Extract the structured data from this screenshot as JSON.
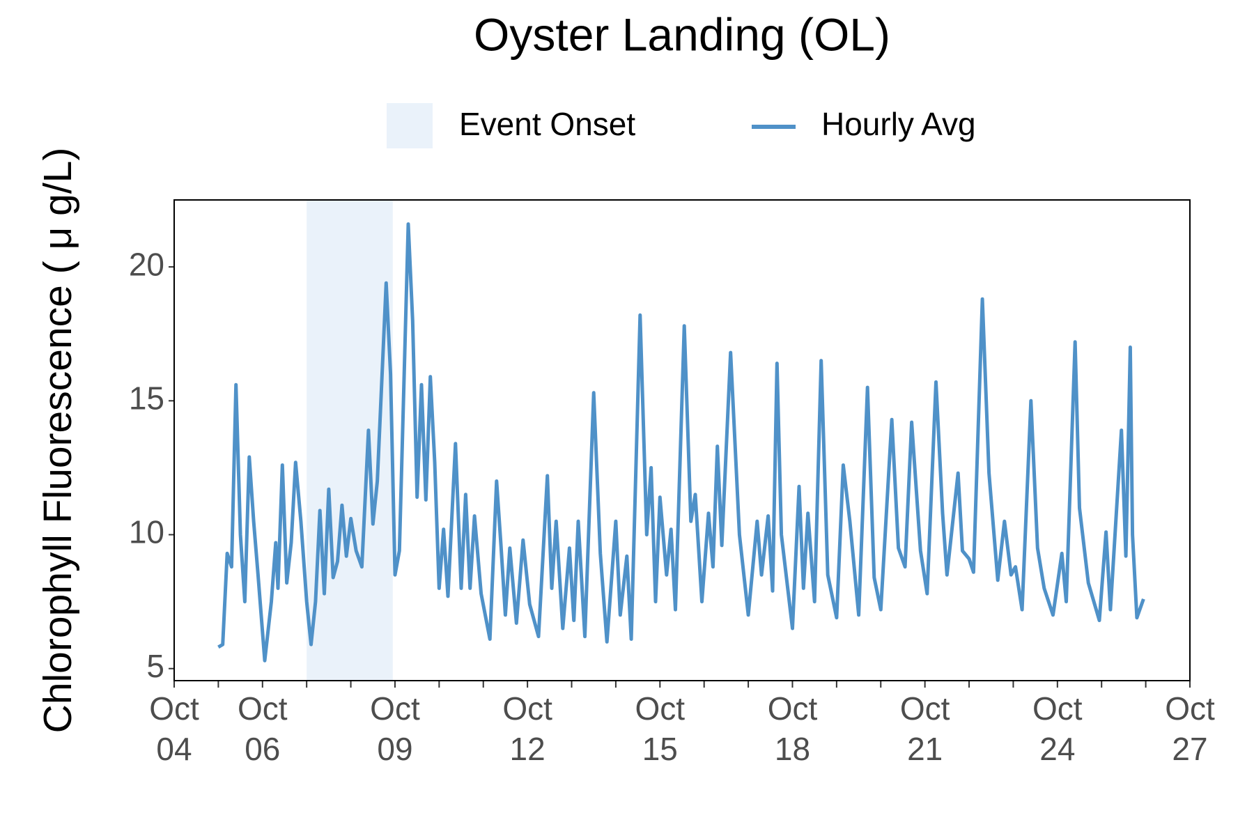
{
  "chart_data": {
    "type": "line",
    "title": "Oyster Landing (OL)",
    "ylabel": "Chlorophyll Fluorescence ( μ g/L)",
    "shaded_region": {
      "name": "Event Onset",
      "color": "#eaf2fa",
      "start": 7.0,
      "end": 8.95
    },
    "legend": "top",
    "xlim": [
      4,
      27
    ],
    "ylim": [
      4.55,
      22.5
    ],
    "xticks": [
      {
        "value": 4,
        "label": [
          "Oct",
          "04"
        ]
      },
      {
        "value": 6,
        "label": [
          "Oct",
          "06"
        ]
      },
      {
        "value": 9,
        "label": [
          "Oct",
          "09"
        ]
      },
      {
        "value": 12,
        "label": [
          "Oct",
          "12"
        ]
      },
      {
        "value": 15,
        "label": [
          "Oct",
          "15"
        ]
      },
      {
        "value": 18,
        "label": [
          "Oct",
          "18"
        ]
      },
      {
        "value": 21,
        "label": [
          "Oct",
          "21"
        ]
      },
      {
        "value": 24,
        "label": [
          "Oct",
          "24"
        ]
      },
      {
        "value": 27,
        "label": [
          "Oct",
          "27"
        ]
      }
    ],
    "xminorticks": [
      5,
      7,
      8,
      10,
      11,
      13,
      14,
      16,
      17,
      19,
      20,
      22,
      23,
      25,
      26
    ],
    "yticks": [
      5,
      10,
      15,
      20
    ],
    "series": [
      {
        "name": "Hourly Avg",
        "color": "#4f91c8",
        "x": [
          5.0,
          5.1,
          5.2,
          5.3,
          5.4,
          5.5,
          5.6,
          5.7,
          5.8,
          5.9,
          6.05,
          6.2,
          6.3,
          6.35,
          6.45,
          6.55,
          6.65,
          6.75,
          6.87,
          7.0,
          7.1,
          7.2,
          7.3,
          7.4,
          7.5,
          7.6,
          7.7,
          7.8,
          7.9,
          8.0,
          8.12,
          8.25,
          8.4,
          8.5,
          8.6,
          8.8,
          8.9,
          9.0,
          9.1,
          9.3,
          9.4,
          9.5,
          9.6,
          9.7,
          9.8,
          9.9,
          10.0,
          10.1,
          10.2,
          10.37,
          10.5,
          10.6,
          10.7,
          10.8,
          10.95,
          11.15,
          11.3,
          11.4,
          11.5,
          11.6,
          11.75,
          11.9,
          12.05,
          12.25,
          12.45,
          12.55,
          12.65,
          12.8,
          12.95,
          13.05,
          13.15,
          13.3,
          13.5,
          13.65,
          13.8,
          14.0,
          14.1,
          14.25,
          14.35,
          14.55,
          14.7,
          14.8,
          14.9,
          15.0,
          15.15,
          15.25,
          15.35,
          15.55,
          15.7,
          15.8,
          15.95,
          16.1,
          16.2,
          16.3,
          16.4,
          16.6,
          16.8,
          17.0,
          17.2,
          17.3,
          17.45,
          17.55,
          17.65,
          17.75,
          18.0,
          18.15,
          18.25,
          18.35,
          18.5,
          18.65,
          18.8,
          19.0,
          19.15,
          19.3,
          19.5,
          19.7,
          19.85,
          20.0,
          20.25,
          20.4,
          20.55,
          20.7,
          20.9,
          21.05,
          21.25,
          21.4,
          21.5,
          21.75,
          21.85,
          22.0,
          22.1,
          22.3,
          22.45,
          22.65,
          22.8,
          22.95,
          23.05,
          23.2,
          23.4,
          23.55,
          23.7,
          23.9,
          24.1,
          24.2,
          24.4,
          24.5,
          24.7,
          24.95,
          25.1,
          25.2,
          25.45,
          25.55,
          25.65,
          25.7,
          25.8,
          25.95
        ],
        "values": [
          5.8,
          5.9,
          9.3,
          8.8,
          15.6,
          10,
          7.5,
          12.9,
          10.5,
          8.5,
          5.3,
          7.5,
          9.7,
          8.0,
          12.6,
          8.2,
          9.7,
          12.7,
          10.5,
          7.5,
          5.9,
          7.5,
          10.9,
          7.8,
          11.7,
          8.4,
          9.0,
          11.1,
          9.2,
          10.6,
          9.4,
          8.8,
          13.9,
          10.4,
          12.0,
          19.4,
          16.0,
          8.5,
          9.4,
          21.6,
          18,
          11.4,
          15.6,
          11.3,
          15.9,
          12.7,
          8.0,
          10.2,
          7.7,
          13.4,
          8.0,
          11.5,
          8.0,
          10.7,
          7.8,
          6.1,
          12.0,
          9.6,
          7.0,
          9.5,
          6.7,
          9.8,
          7.4,
          6.2,
          12.2,
          8.0,
          10.5,
          6.5,
          9.5,
          6.8,
          10.5,
          6.2,
          15.3,
          9.3,
          6.0,
          10.5,
          7.0,
          9.2,
          6.1,
          18.2,
          10.0,
          12.5,
          7.5,
          11.4,
          8.5,
          10.2,
          7.2,
          17.8,
          10.5,
          11.5,
          7.5,
          10.8,
          8.8,
          13.3,
          9.6,
          16.8,
          10.0,
          7.0,
          10.5,
          8.5,
          10.7,
          7.9,
          16.4,
          10.0,
          6.5,
          11.8,
          8.0,
          10.8,
          7.5,
          16.5,
          8.5,
          6.9,
          12.6,
          10.5,
          7.0,
          15.5,
          8.4,
          7.2,
          14.3,
          9.5,
          8.8,
          14.2,
          9.4,
          7.8,
          15.7,
          10.8,
          8.5,
          12.3,
          9.4,
          9.1,
          8.6,
          18.8,
          12.3,
          8.3,
          10.5,
          8.5,
          8.8,
          7.2,
          15.0,
          9.5,
          8.0,
          7.0,
          9.3,
          7.5,
          17.2,
          11.0,
          8.2,
          6.8,
          10.1,
          7.2,
          13.9,
          9.2,
          17.0,
          10.0,
          6.9,
          7.6
        ]
      }
    ]
  }
}
